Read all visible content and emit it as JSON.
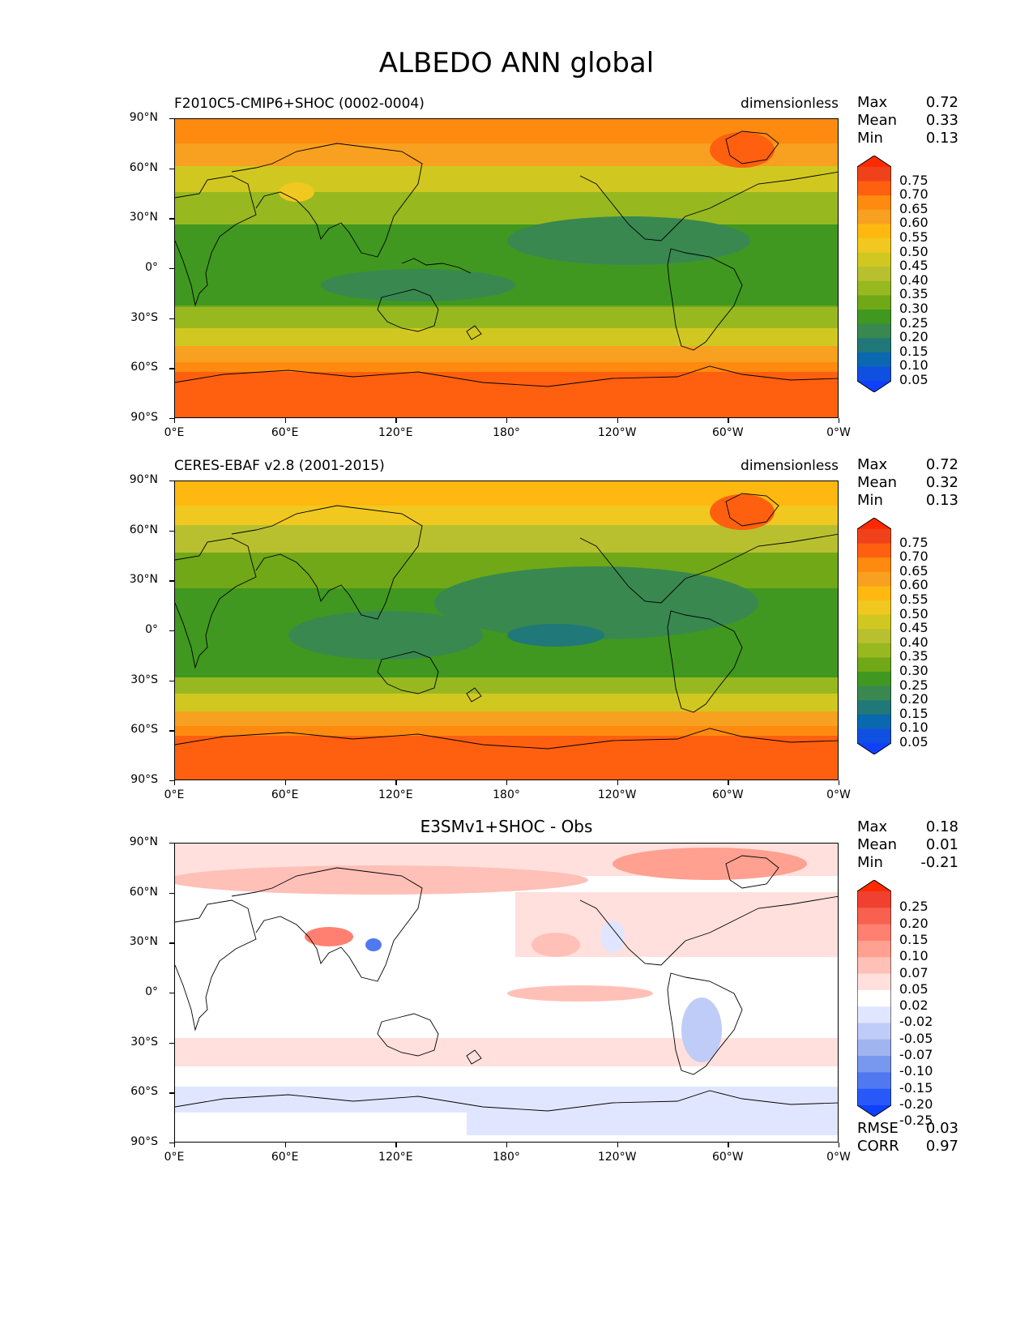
{
  "title": "ALBEDO ANN global",
  "panels": [
    {
      "left_title": "F2010C5-CMIP6+SHOC (0002-0004)",
      "right_title": "dimensionless",
      "center_title": "",
      "stats": {
        "max_label": "Max",
        "max": "0.72",
        "mean_label": "Mean",
        "mean": "0.33",
        "min_label": "Min",
        "min": "0.13"
      },
      "colorbar_labels": [
        "0.75",
        "0.70",
        "0.65",
        "0.60",
        "0.55",
        "0.50",
        "0.45",
        "0.40",
        "0.35",
        "0.30",
        "0.25",
        "0.20",
        "0.15",
        "0.10",
        "0.05"
      ],
      "colorbar_colors": [
        "#ff2a00",
        "#f0421a",
        "#ff6010",
        "#ff8a10",
        "#f8a020",
        "#ffb810",
        "#f0c820",
        "#d0c820",
        "#b8c030",
        "#98b820",
        "#70a818",
        "#409820",
        "#388850",
        "#207878",
        "#0a68b0",
        "#1050e0",
        "#1040ff"
      ]
    },
    {
      "left_title": "CERES-EBAF v2.8 (2001-2015)",
      "right_title": "dimensionless",
      "center_title": "",
      "stats": {
        "max_label": "Max",
        "max": "0.72",
        "mean_label": "Mean",
        "mean": "0.32",
        "min_label": "Min",
        "min": "0.13"
      },
      "colorbar_labels": [
        "0.75",
        "0.70",
        "0.65",
        "0.60",
        "0.55",
        "0.50",
        "0.45",
        "0.40",
        "0.35",
        "0.30",
        "0.25",
        "0.20",
        "0.15",
        "0.10",
        "0.05"
      ],
      "colorbar_colors": [
        "#ff2a00",
        "#f0421a",
        "#ff6010",
        "#ff8a10",
        "#f8a020",
        "#ffb810",
        "#f0c820",
        "#d0c820",
        "#b8c030",
        "#98b820",
        "#70a818",
        "#409820",
        "#388850",
        "#207878",
        "#0a68b0",
        "#1050e0",
        "#1040ff"
      ]
    },
    {
      "left_title": "",
      "right_title": "",
      "center_title": "E3SMv1+SHOC - Obs",
      "stats": {
        "max_label": "Max",
        "max": "0.18",
        "mean_label": "Mean",
        "mean": "0.01",
        "min_label": "Min",
        "min": "-0.21"
      },
      "colorbar_labels": [
        "0.25",
        "0.20",
        "0.15",
        "0.10",
        "0.07",
        "0.05",
        "0.02",
        "-0.02",
        "-0.05",
        "-0.07",
        "-0.10",
        "-0.15",
        "-0.20",
        "-0.25"
      ],
      "colorbar_colors": [
        "#ff2a00",
        "#f04030",
        "#f86050",
        "#ff8070",
        "#ffa090",
        "#ffc0b8",
        "#ffe0dc",
        "#ffffff",
        "#e0e6ff",
        "#c0ccf8",
        "#a0b4f0",
        "#7898f0",
        "#5078f0",
        "#2858f8",
        "#1040ff"
      ],
      "footer": {
        "rmse_label": "RMSE",
        "rmse": "0.03",
        "corr_label": "CORR",
        "corr": "0.97"
      }
    }
  ],
  "y_ticks": [
    "90°N",
    "60°N",
    "30°N",
    "0°",
    "30°S",
    "60°S",
    "90°S"
  ],
  "x_ticks": [
    "0°E",
    "60°E",
    "120°E",
    "180°",
    "120°W",
    "60°W",
    "0°W"
  ]
}
